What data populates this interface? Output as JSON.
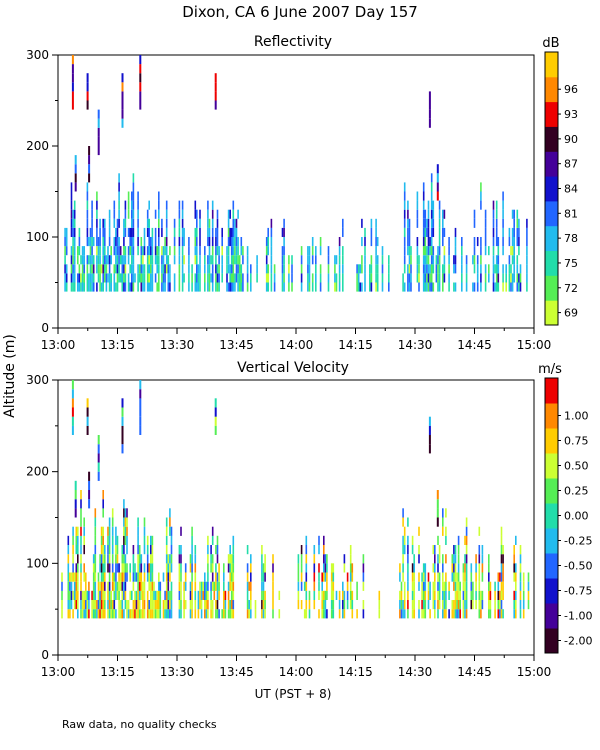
{
  "figure": {
    "title": "Dixon, CA   6 June 2007   Day 157",
    "ylabel": "Altitude (m)",
    "xlabel": "UT  (PST + 8)",
    "note": "Raw data, no quality checks"
  },
  "chart_data": [
    {
      "type": "heatmap",
      "title": "Reflectivity",
      "colorbar_unit": "dB",
      "colorbar_ticks": [
        "69",
        "72",
        "75",
        "78",
        "81",
        "84",
        "87",
        "90",
        "93",
        "96"
      ],
      "colorbar_colors": [
        "#ccff33",
        "#55ee55",
        "#22ddaa",
        "#22bbee",
        "#2266ff",
        "#1111cc",
        "#440099",
        "#330022",
        "#ee0000",
        "#ff8800",
        "#ffcc00"
      ],
      "xlim": [
        0,
        120
      ],
      "ylim": [
        0,
        300
      ],
      "x_ticks": [
        "13:00",
        "13:15",
        "13:30",
        "13:45",
        "14:00",
        "14:15",
        "14:30",
        "14:45",
        "15:00"
      ],
      "y_ticks": [
        "0",
        "100",
        "200",
        "300"
      ],
      "data_extent": {
        "time_min": [
          0,
          119
        ],
        "altitude_m": [
          40,
          300
        ]
      }
    },
    {
      "type": "heatmap",
      "title": "Vertical Velocity",
      "colorbar_unit": "m/s",
      "colorbar_ticks": [
        "-2.00",
        "-1.00",
        "-0.75",
        "-0.50",
        "-0.25",
        "0.00",
        "0.25",
        "0.50",
        "0.75",
        "1.00"
      ],
      "colorbar_colors": [
        "#330022",
        "#440099",
        "#1111cc",
        "#2266ff",
        "#22bbee",
        "#22ddaa",
        "#55ee55",
        "#ccff33",
        "#ffcc00",
        "#ff8800",
        "#ee0000"
      ],
      "xlim": [
        0,
        120
      ],
      "ylim": [
        0,
        300
      ],
      "x_ticks": [
        "13:00",
        "13:15",
        "13:30",
        "13:45",
        "14:00",
        "14:15",
        "14:30",
        "14:45",
        "15:00"
      ],
      "y_ticks": [
        "0",
        "100",
        "200",
        "300"
      ],
      "data_extent": {
        "time_min": [
          0,
          119
        ],
        "altitude_m": [
          40,
          300
        ]
      }
    }
  ]
}
